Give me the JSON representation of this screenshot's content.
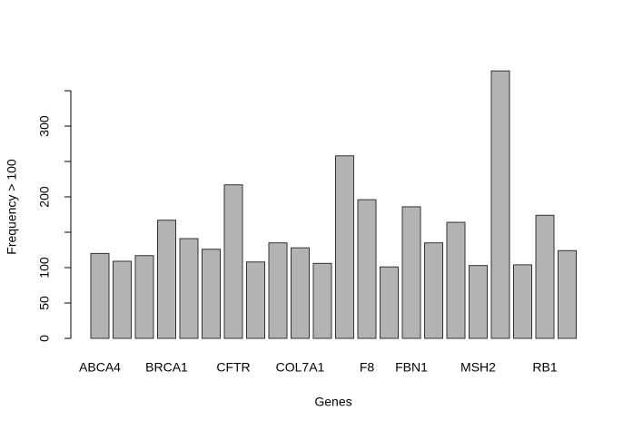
{
  "chart_data": {
    "type": "bar",
    "xlabel": "Genes",
    "ylabel": "Frequency > 100",
    "categories": [
      "ABCA4",
      null,
      null,
      "BRCA1",
      null,
      null,
      "CFTR",
      null,
      null,
      "COL7A1",
      null,
      null,
      "F8",
      null,
      "FBN1",
      null,
      null,
      "MSH2",
      null,
      null,
      "RB1",
      null
    ],
    "values": [
      120,
      109,
      117,
      167,
      141,
      126,
      217,
      108,
      135,
      128,
      106,
      258,
      196,
      101,
      186,
      135,
      164,
      103,
      378,
      104,
      174,
      124
    ],
    "color": "#b3b3b3",
    "edgecolor": "#333333",
    "ylim": [
      0,
      380
    ],
    "yticks": [
      0,
      50,
      100,
      200,
      300
    ],
    "yticks_unlabeled": [
      150,
      250,
      350
    ]
  }
}
